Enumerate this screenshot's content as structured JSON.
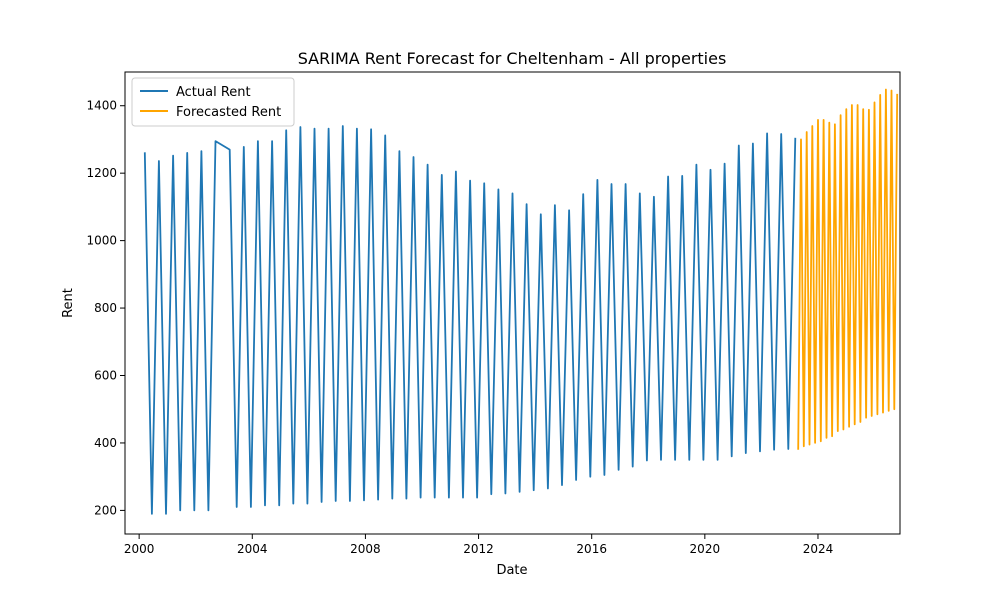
{
  "chart_data": {
    "type": "line",
    "title": "SARIMA Rent Forecast for Cheltenham - All properties",
    "xlabel": "Date",
    "ylabel": "Rent",
    "xlim": [
      1999.5,
      2026.9
    ],
    "ylim": [
      130,
      1500
    ],
    "x_ticks": [
      2000,
      2004,
      2008,
      2012,
      2016,
      2020,
      2024
    ],
    "y_ticks": [
      200,
      400,
      600,
      800,
      1000,
      1200,
      1400
    ],
    "grid": false,
    "legend_position": "top-left",
    "series": [
      {
        "name": "Actual Rent",
        "color": "#1f77b4",
        "points": [
          [
            2000.2,
            1262
          ],
          [
            2000.45,
            190
          ],
          [
            2000.7,
            1236
          ],
          [
            2000.95,
            190
          ],
          [
            2001.2,
            1252
          ],
          [
            2001.45,
            200
          ],
          [
            2001.7,
            1260
          ],
          [
            2001.95,
            200
          ],
          [
            2002.2,
            1265
          ],
          [
            2002.45,
            200
          ],
          [
            2002.7,
            1295
          ],
          [
            2003.2,
            1270
          ],
          [
            2003.45,
            210
          ],
          [
            2003.7,
            1278
          ],
          [
            2003.95,
            210
          ],
          [
            2004.2,
            1295
          ],
          [
            2004.45,
            215
          ],
          [
            2004.7,
            1295
          ],
          [
            2004.95,
            215
          ],
          [
            2005.2,
            1327
          ],
          [
            2005.45,
            220
          ],
          [
            2005.7,
            1337
          ],
          [
            2005.95,
            220
          ],
          [
            2006.2,
            1332
          ],
          [
            2006.45,
            225
          ],
          [
            2006.7,
            1332
          ],
          [
            2006.95,
            228
          ],
          [
            2007.2,
            1340
          ],
          [
            2007.45,
            228
          ],
          [
            2007.7,
            1332
          ],
          [
            2007.95,
            230
          ],
          [
            2008.2,
            1330
          ],
          [
            2008.45,
            232
          ],
          [
            2008.7,
            1312
          ],
          [
            2008.95,
            235
          ],
          [
            2009.2,
            1265
          ],
          [
            2009.45,
            235
          ],
          [
            2009.7,
            1248
          ],
          [
            2009.95,
            238
          ],
          [
            2010.2,
            1225
          ],
          [
            2010.45,
            238
          ],
          [
            2010.7,
            1195
          ],
          [
            2010.95,
            238
          ],
          [
            2011.2,
            1205
          ],
          [
            2011.45,
            238
          ],
          [
            2011.7,
            1178
          ],
          [
            2011.95,
            238
          ],
          [
            2012.2,
            1170
          ],
          [
            2012.45,
            248
          ],
          [
            2012.7,
            1152
          ],
          [
            2012.95,
            250
          ],
          [
            2013.2,
            1140
          ],
          [
            2013.45,
            255
          ],
          [
            2013.7,
            1108
          ],
          [
            2013.95,
            260
          ],
          [
            2014.2,
            1078
          ],
          [
            2014.45,
            265
          ],
          [
            2014.7,
            1105
          ],
          [
            2014.95,
            275
          ],
          [
            2015.2,
            1090
          ],
          [
            2015.45,
            290
          ],
          [
            2015.7,
            1138
          ],
          [
            2015.95,
            300
          ],
          [
            2016.2,
            1180
          ],
          [
            2016.45,
            305
          ],
          [
            2016.7,
            1168
          ],
          [
            2016.95,
            320
          ],
          [
            2017.2,
            1168
          ],
          [
            2017.45,
            330
          ],
          [
            2017.7,
            1140
          ],
          [
            2017.95,
            348
          ],
          [
            2018.2,
            1130
          ],
          [
            2018.45,
            350
          ],
          [
            2018.7,
            1190
          ],
          [
            2018.95,
            350
          ],
          [
            2019.2,
            1192
          ],
          [
            2019.45,
            350
          ],
          [
            2019.7,
            1225
          ],
          [
            2019.95,
            350
          ],
          [
            2020.2,
            1210
          ],
          [
            2020.45,
            350
          ],
          [
            2020.7,
            1228
          ],
          [
            2020.95,
            360
          ],
          [
            2021.2,
            1282
          ],
          [
            2021.45,
            370
          ],
          [
            2021.7,
            1288
          ],
          [
            2021.95,
            375
          ],
          [
            2022.2,
            1318
          ],
          [
            2022.45,
            380
          ],
          [
            2022.7,
            1316
          ],
          [
            2022.95,
            382
          ],
          [
            2023.2,
            1305
          ]
        ]
      },
      {
        "name": "Forecasted Rent",
        "color": "#ffa500",
        "points": [
          [
            2023.3,
            380
          ],
          [
            2023.4,
            1300
          ],
          [
            2023.5,
            390
          ],
          [
            2023.6,
            1322
          ],
          [
            2023.7,
            395
          ],
          [
            2023.8,
            1340
          ],
          [
            2023.9,
            400
          ],
          [
            2024.0,
            1358
          ],
          [
            2024.1,
            405
          ],
          [
            2024.2,
            1358
          ],
          [
            2024.3,
            415
          ],
          [
            2024.4,
            1350
          ],
          [
            2024.5,
            420
          ],
          [
            2024.6,
            1345
          ],
          [
            2024.7,
            435
          ],
          [
            2024.8,
            1372
          ],
          [
            2024.9,
            440
          ],
          [
            2025.0,
            1390
          ],
          [
            2025.1,
            448
          ],
          [
            2025.2,
            1402
          ],
          [
            2025.3,
            455
          ],
          [
            2025.4,
            1402
          ],
          [
            2025.5,
            462
          ],
          [
            2025.6,
            1390
          ],
          [
            2025.7,
            475
          ],
          [
            2025.8,
            1388
          ],
          [
            2025.9,
            480
          ],
          [
            2026.0,
            1410
          ],
          [
            2026.1,
            485
          ],
          [
            2026.2,
            1432
          ],
          [
            2026.3,
            490
          ],
          [
            2026.4,
            1448
          ],
          [
            2026.5,
            495
          ],
          [
            2026.6,
            1445
          ],
          [
            2026.7,
            500
          ],
          [
            2026.8,
            1435
          ]
        ]
      }
    ]
  }
}
